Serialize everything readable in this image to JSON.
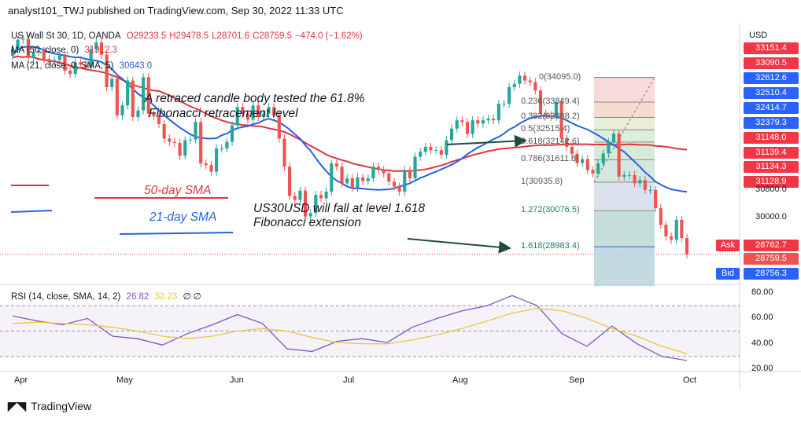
{
  "header": {
    "publisher": "analyst101_TWJ published on TradingView.com, Sep 30, 2022 11:33 UTC"
  },
  "legend": {
    "symbol": "US Wall St 30, 1D, OANDA",
    "ohlc": {
      "O": "O29233.5",
      "H": "H29478.5",
      "L": "L28701.6",
      "C": "C28759.5",
      "chg": "−474.0 (−1.62%)"
    },
    "ma50": {
      "label": "MA (50, close, 0)",
      "value": "31912.3",
      "color": "#e0353f"
    },
    "ma21": {
      "label": "MA (21, close, 0, SMA, 5)",
      "value": "30643.0",
      "color": "#2862e0"
    },
    "rsi": {
      "label": "RSI (14, close, SMA, 14, 2)",
      "value": "26.82",
      "sma": "32.23",
      "extra": "∅ ∅"
    }
  },
  "annotations": {
    "retrace": [
      "A retraced candle body tested the  61.8%",
      "Fibonacci retracement level"
    ],
    "sma50": "50-day SMA",
    "sma21": "21-day SMA",
    "fall": [
      "US30USD will fall at level  1.618",
      "Fibonacci extension"
    ]
  },
  "fib_levels": [
    {
      "label": "0(34095.0)"
    },
    {
      "label": "0.236(33349.4)"
    },
    {
      "label": "0.382(32888.2)"
    },
    {
      "label": "0.5(32515.4)"
    },
    {
      "label": "0.618(32142.6)"
    },
    {
      "label": "0.786(31611.8)"
    },
    {
      "label": "1(30935.8)"
    },
    {
      "label": "1.272(30076.5)"
    },
    {
      "label": "1.618(28983.4)"
    }
  ],
  "price_axis": {
    "unit": "USD",
    "ticks": [
      "33151.4",
      "33090.5",
      "32612.6",
      "32510.4",
      "32414.7",
      "32379.3",
      "31148.0",
      "31139.4",
      "31134.3",
      "31128.9",
      "30800.0",
      "30000.0",
      "28759.5"
    ],
    "ask": {
      "label": "Ask",
      "value": "28762.7",
      "color": "#f23645"
    },
    "bid": {
      "label": "Bid",
      "value": "28756.3",
      "color": "#2962ff"
    }
  },
  "rsi_axis": {
    "ticks": [
      "80.00",
      "60.00",
      "40.00",
      "20.00"
    ]
  },
  "time_axis": {
    "ticks": [
      "Apr",
      "May",
      "Jun",
      "Jul",
      "Aug",
      "Sep",
      "Oct"
    ]
  },
  "footer": {
    "brand": "TradingView"
  },
  "chart_data": [
    {
      "type": "candlestick",
      "x": [
        "Mar 28",
        "Mar 29",
        "Mar 30",
        "Mar 31",
        "Apr 1",
        "Apr 4",
        "Apr 5",
        "Apr 6",
        "Apr 7",
        "Apr 8",
        "Apr 11",
        "Apr 12",
        "Apr 13",
        "Apr 14",
        "Apr 18",
        "Apr 19",
        "Apr 20",
        "Apr 21",
        "Apr 22",
        "Apr 25",
        "Apr 26",
        "Apr 27",
        "Apr 28",
        "Apr 29",
        "May 2",
        "May 3",
        "May 4",
        "May 5",
        "May 6",
        "May 9",
        "May 10",
        "May 11",
        "May 12",
        "May 13",
        "May 16",
        "May 17",
        "May 18",
        "May 19",
        "May 20",
        "May 23",
        "May 24",
        "May 25",
        "May 26",
        "May 27",
        "May 31",
        "Jun 1",
        "Jun 2",
        "Jun 3",
        "Jun 6",
        "Jun 7",
        "Jun 8",
        "Jun 9",
        "Jun 10",
        "Jun 13",
        "Jun 14",
        "Jun 15",
        "Jun 16",
        "Jun 17",
        "Jun 21",
        "Jun 22",
        "Jun 23",
        "Jun 24",
        "Jun 27",
        "Jun 28",
        "Jun 29",
        "Jun 30",
        "Jul 1",
        "Jul 5",
        "Jul 6",
        "Jul 7",
        "Jul 8",
        "Jul 11",
        "Jul 12",
        "Jul 13",
        "Jul 14",
        "Jul 15",
        "Jul 18",
        "Jul 19",
        "Jul 20",
        "Jul 21",
        "Jul 22",
        "Jul 25",
        "Jul 26",
        "Jul 27",
        "Jul 28",
        "Jul 29",
        "Aug 1",
        "Aug 2",
        "Aug 3",
        "Aug 4",
        "Aug 5",
        "Aug 8",
        "Aug 9",
        "Aug 10",
        "Aug 11",
        "Aug 12",
        "Aug 15",
        "Aug 16",
        "Aug 17",
        "Aug 18",
        "Aug 19",
        "Aug 22",
        "Aug 23",
        "Aug 24",
        "Aug 25",
        "Aug 26",
        "Aug 29",
        "Aug 30",
        "Aug 31",
        "Sep 1",
        "Sep 2",
        "Sep 6",
        "Sep 7",
        "Sep 8",
        "Sep 9",
        "Sep 12",
        "Sep 13",
        "Sep 14",
        "Sep 15",
        "Sep 16",
        "Sep 19",
        "Sep 20",
        "Sep 21",
        "Sep 22",
        "Sep 23",
        "Sep 26",
        "Sep 27",
        "Sep 28",
        "Sep 29",
        "Sep 30"
      ],
      "close": [
        34950,
        35230,
        35250,
        34680,
        34850,
        34900,
        34650,
        34550,
        34620,
        34750,
        34300,
        34200,
        34550,
        34480,
        34400,
        34950,
        35150,
        34780,
        33800,
        34050,
        32950,
        33250,
        34000,
        32900,
        33100,
        34100,
        33000,
        32920,
        32690,
        32250,
        32150,
        32120,
        31730,
        32200,
        32220,
        32750,
        31500,
        31450,
        31250,
        31950,
        31950,
        32150,
        32650,
        33200,
        33000,
        32820,
        33250,
        32900,
        33000,
        33200,
        32950,
        32250,
        31400,
        30520,
        30400,
        30680,
        29900,
        30000,
        30550,
        30450,
        30650,
        31500,
        31400,
        30900,
        31050,
        30770,
        31080,
        30970,
        31050,
        31400,
        31300,
        31200,
        30950,
        30800,
        30650,
        31300,
        31050,
        31700,
        31850,
        32000,
        31900,
        31900,
        31760,
        32200,
        32550,
        32800,
        32750,
        32390,
        32800,
        32700,
        32800,
        32850,
        32800,
        33300,
        33300,
        33800,
        33900,
        34150,
        34000,
        33950,
        33700,
        33000,
        32950,
        32900,
        33350,
        32250,
        32000,
        31790,
        31510,
        31630,
        31300,
        31200,
        31500,
        31800,
        32150,
        32400,
        31100,
        31150,
        31150,
        30900,
        31000,
        30700,
        30700,
        30150,
        29650,
        29300,
        29200,
        29800,
        29250,
        28759.5
      ],
      "ma50": [
        34690,
        34730,
        34700,
        34730,
        34700,
        34650,
        34620,
        34600,
        34570,
        34550,
        34500,
        34450,
        34400,
        34380,
        34340,
        34310,
        34290,
        34260,
        34220,
        34160,
        34100,
        34020,
        33950,
        33870,
        33820,
        33780,
        33730,
        33700,
        33680,
        33620,
        33550,
        33470,
        33380,
        33300,
        33220,
        33160,
        33090,
        33000,
        32920,
        32860,
        32800,
        32750,
        32710,
        32680,
        32660,
        32650,
        32630,
        32620,
        32600,
        32560,
        32530,
        32490,
        32450,
        32380,
        32300,
        32220,
        32120,
        32030,
        31950,
        31860,
        31770,
        31700,
        31650,
        31600,
        31560,
        31500,
        31460,
        31430,
        31390,
        31360,
        31330,
        31300,
        31290,
        31270,
        31270,
        31270,
        31270,
        31280,
        31300,
        31320,
        31360,
        31400,
        31440,
        31490,
        31550,
        31600,
        31640,
        31700,
        31750,
        31790,
        31830,
        31870,
        31900,
        31930,
        31950,
        31960,
        31980,
        31990,
        32010,
        32030,
        32040,
        32050,
        32050,
        32050,
        32060,
        32070,
        32070,
        32080,
        32080,
        32080,
        32080,
        32070,
        32070,
        32070,
        32070,
        32060,
        32060,
        32070,
        32080,
        32070,
        32060,
        32060,
        32050,
        32030,
        32020,
        32000,
        31980,
        31950,
        31930,
        31912.3
      ],
      "ma21": [
        34750,
        34930,
        35010,
        35020,
        35010,
        34980,
        34920,
        34850,
        34810,
        34780,
        34760,
        34720,
        34700,
        34700,
        34650,
        34620,
        34600,
        34560,
        34460,
        34350,
        34170,
        34050,
        33900,
        33750,
        33600,
        33500,
        33400,
        33250,
        33100,
        32950,
        32820,
        32700,
        32580,
        32480,
        32380,
        32300,
        32280,
        32250,
        32250,
        32260,
        32350,
        32400,
        32500,
        32560,
        32600,
        32620,
        32680,
        32720,
        32800,
        32850,
        32800,
        32740,
        32640,
        32520,
        32380,
        32250,
        32050,
        31880,
        31660,
        31450,
        31270,
        31100,
        30980,
        30900,
        30800,
        30750,
        30750,
        30740,
        30720,
        30710,
        30700,
        30710,
        30720,
        30750,
        30800,
        30850,
        30900,
        30980,
        31060,
        31120,
        31190,
        31250,
        31320,
        31390,
        31460,
        31550,
        31650,
        31780,
        31880,
        31980,
        32050,
        32150,
        32230,
        32300,
        32400,
        32520,
        32600,
        32700,
        32790,
        32860,
        32900,
        32930,
        32930,
        32920,
        32910,
        32870,
        32800,
        32720,
        32640,
        32580,
        32520,
        32440,
        32350,
        32250,
        32150,
        32050,
        31950,
        31850,
        31700,
        31550,
        31400,
        31230,
        31100,
        30950,
        30860,
        30780,
        30720,
        30690,
        30660,
        30643.0
      ]
    },
    {
      "type": "line",
      "title": "RSI (14, close, SMA, 14, 2)",
      "x": [
        "Mar 28",
        "Apr 4",
        "Apr 11",
        "Apr 18",
        "Apr 25",
        "May 2",
        "May 9",
        "May 16",
        "May 23",
        "May 30",
        "Jun 6",
        "Jun 13",
        "Jun 20",
        "Jun 27",
        "Jul 4",
        "Jul 11",
        "Jul 18",
        "Jul 25",
        "Aug 1",
        "Aug 8",
        "Aug 15",
        "Aug 22",
        "Aug 29",
        "Sep 5",
        "Sep 12",
        "Sep 19",
        "Sep 26",
        "Sep 30"
      ],
      "series": [
        {
          "name": "RSI",
          "values": [
            62,
            58,
            55,
            60,
            46,
            44,
            39,
            48,
            55,
            63,
            56,
            36,
            34,
            42,
            44,
            41,
            53,
            60,
            66,
            70,
            78,
            70,
            48,
            38,
            54,
            40,
            30,
            26.82
          ]
        },
        {
          "name": "SMA",
          "values": [
            56,
            57,
            56,
            55,
            53,
            50,
            46,
            44,
            46,
            50,
            52,
            50,
            45,
            41,
            40,
            40,
            43,
            47,
            52,
            58,
            64,
            68,
            66,
            60,
            52,
            46,
            38,
            32.23
          ]
        }
      ],
      "ylim": [
        20,
        85
      ]
    }
  ]
}
